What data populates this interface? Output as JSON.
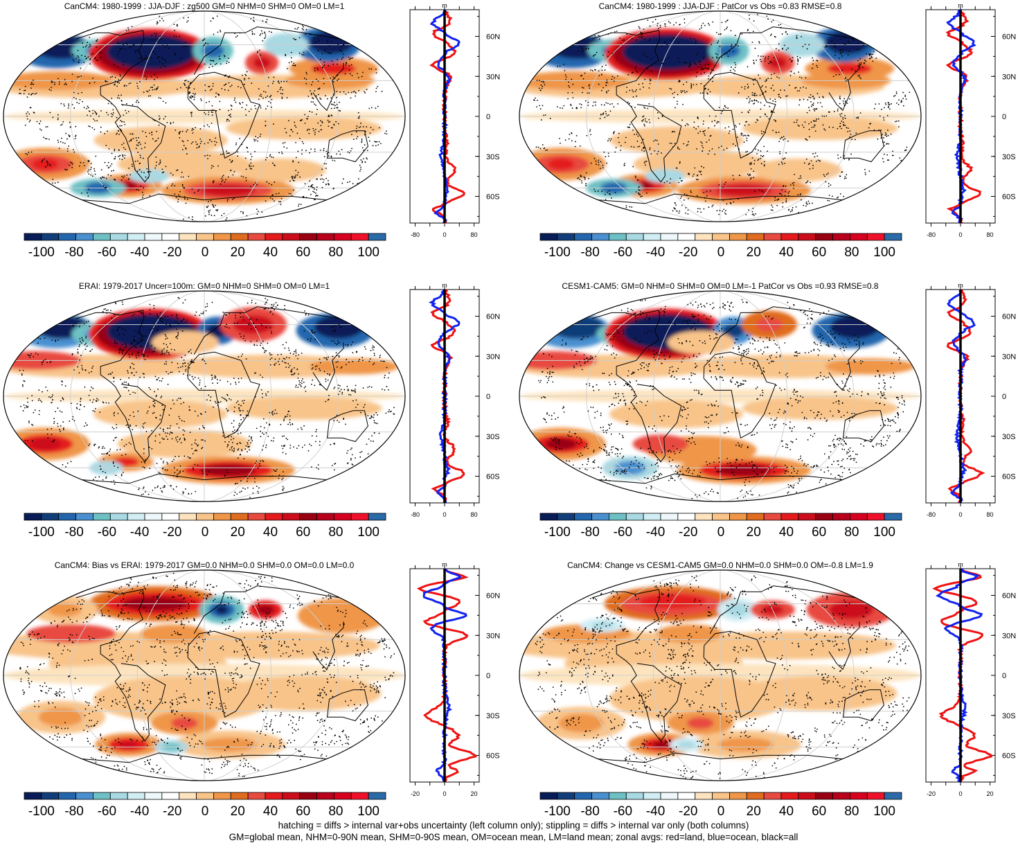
{
  "palette": [
    "#081d58",
    "#113e78",
    "#2366ae",
    "#4a90d0",
    "#6dc0c4",
    "#a9d9e3",
    "#d2eef5",
    "#eef8fb",
    "#ffffff",
    "#fde4bf",
    "#f8c48a",
    "#ef9649",
    "#e06c1f",
    "#e84a40",
    "#e41a1c",
    "#cc0c1a",
    "#990012",
    "#b8001c",
    "#d8001f",
    "#f0102a",
    "#2a6aa8"
  ],
  "colorbar": {
    "tick_labels": [
      "-100",
      "-80",
      "-60",
      "-40",
      "-20",
      "0",
      "20",
      "40",
      "60",
      "80",
      "100"
    ]
  },
  "profile_axis": {
    "lat_labels": [
      "60N",
      "30N",
      "0",
      "30S",
      "60S"
    ],
    "top_label": "m"
  },
  "panels": [
    {
      "id": "p1",
      "title": "CanCM4: 1980-1999 : JJA-DJF : zg500 GM=0 NHM=0 SHM=0 OM=0 LM=1",
      "x_labels": [
        "-80",
        "0",
        "80"
      ],
      "scale": 80
    },
    {
      "id": "p2",
      "title": "CanCM4: 1980-1999 : JJA-DJF : PatCor vs Obs =0.83 RMSE=0.8",
      "x_labels": [
        "-80",
        "0",
        "80"
      ],
      "scale": 80
    },
    {
      "id": "p3",
      "title": "ERAI: 1979-2017 Uncer=100m: GM=0 NHM=0 SHM=0 OM=0 LM=1",
      "x_labels": [
        "-80",
        "0",
        "80"
      ],
      "scale": 80
    },
    {
      "id": "p4",
      "title": "CESM1-CAM5: GM=0 NHM=0 SHM=0 OM=0 LM=-1 PatCor vs Obs =0.93 RMSE=0.8",
      "x_labels": [
        "-80",
        "0",
        "80"
      ],
      "scale": 80
    },
    {
      "id": "p5",
      "title": "CanCM4: Bias vs ERAI: 1979-2017 GM=0.0 NHM=0.0 SHM=0.0 OM=0.0 LM=0.0",
      "x_labels": [
        "-20",
        "0",
        "20"
      ],
      "scale": 20
    },
    {
      "id": "p6",
      "title": "CanCM4: Change vs CESM1-CAM5 GM=0.0 NHM=0.0 SHM=0.0 OM=-0.8 LM=1.9",
      "x_labels": [
        "-20",
        "0",
        "20"
      ],
      "scale": 20
    }
  ],
  "footer": {
    "line1": "hatching = diffs > internal var+obs uncertainty (left column only); stippling = diffs > internal var only (both columns)",
    "line2": "GM=global mean, NHM=0-90N mean, SHM=0-90S mean, OM=ocean mean, LM=land mean; zonal avgs: red=land, blue=ocean, black=all"
  },
  "chart_data": [
    {
      "type": "heatmap",
      "title": "CanCM4: 1980-1999 : JJA-DJF : zg500 GM=0 NHM=0 SHM=0 OM=0 LM=1",
      "colorbar_range": [
        -100,
        100
      ],
      "zonal_profile_xlim": [
        -80,
        80
      ],
      "lat_ticks": [
        "60N",
        "30N",
        "0",
        "30S",
        "60S"
      ],
      "anomalies": [
        {
          "lon": -170,
          "lat": 60,
          "value": -100
        },
        {
          "lon": -140,
          "lat": 50,
          "value": -60
        },
        {
          "lon": -100,
          "lat": 55,
          "value": -100
        },
        {
          "lon": -20,
          "lat": 45,
          "value": 60
        },
        {
          "lon": 20,
          "lat": 55,
          "value": -100
        },
        {
          "lon": -150,
          "lat": -40,
          "value": 60
        },
        {
          "lon": -80,
          "lat": -55,
          "value": 80
        },
        {
          "lon": 10,
          "lat": -60,
          "value": 80
        }
      ]
    },
    {
      "type": "heatmap",
      "title": "CanCM4: 1980-1999 : JJA-DJF : PatCor vs Obs =0.83 RMSE=0.8",
      "colorbar_range": [
        -100,
        100
      ],
      "zonal_profile_xlim": [
        -80,
        80
      ]
    },
    {
      "type": "heatmap",
      "title": "ERAI: 1979-2017 Uncer=100m: GM=0 NHM=0 SHM=0 OM=0 LM=1",
      "colorbar_range": [
        -100,
        100
      ],
      "zonal_profile_xlim": [
        -80,
        80
      ]
    },
    {
      "type": "heatmap",
      "title": "CESM1-CAM5: GM=0 NHM=0 SHM=0 OM=0 LM=-1 PatCor vs Obs =0.93 RMSE=0.8",
      "colorbar_range": [
        -100,
        100
      ],
      "zonal_profile_xlim": [
        -80,
        80
      ]
    },
    {
      "type": "heatmap",
      "title": "CanCM4: Bias vs ERAI: 1979-2017 GM=0.0 NHM=0.0 SHM=0.0 OM=0.0 LM=0.0",
      "colorbar_range": [
        -100,
        100
      ],
      "zonal_profile_xlim": [
        -20,
        20
      ]
    },
    {
      "type": "heatmap",
      "title": "CanCM4: Change vs CESM1-CAM5 GM=0.0 NHM=0.0 SHM=0.0 OM=-0.8 LM=1.9",
      "colorbar_range": [
        -100,
        100
      ],
      "zonal_profile_xlim": [
        -20,
        20
      ]
    }
  ]
}
